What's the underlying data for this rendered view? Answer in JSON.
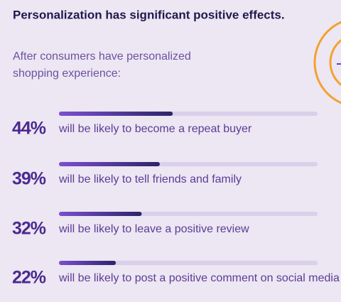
{
  "chart_data": {
    "type": "bar",
    "title": "Personalization has significant positive effects.",
    "subtitle": [
      "After consumers have personalized",
      "shopping experience:"
    ],
    "categories": [
      "will be likely to become a repeat buyer",
      "will be likely to tell friends and family",
      "will be likely to leave a positive review",
      "will be likely to post a positive comment on social media"
    ],
    "values": [
      44,
      39,
      32,
      22
    ],
    "value_labels": [
      "44%",
      "39%",
      "32%",
      "22%"
    ],
    "xlim": [
      0,
      100
    ],
    "color": "#2b2568"
  }
}
